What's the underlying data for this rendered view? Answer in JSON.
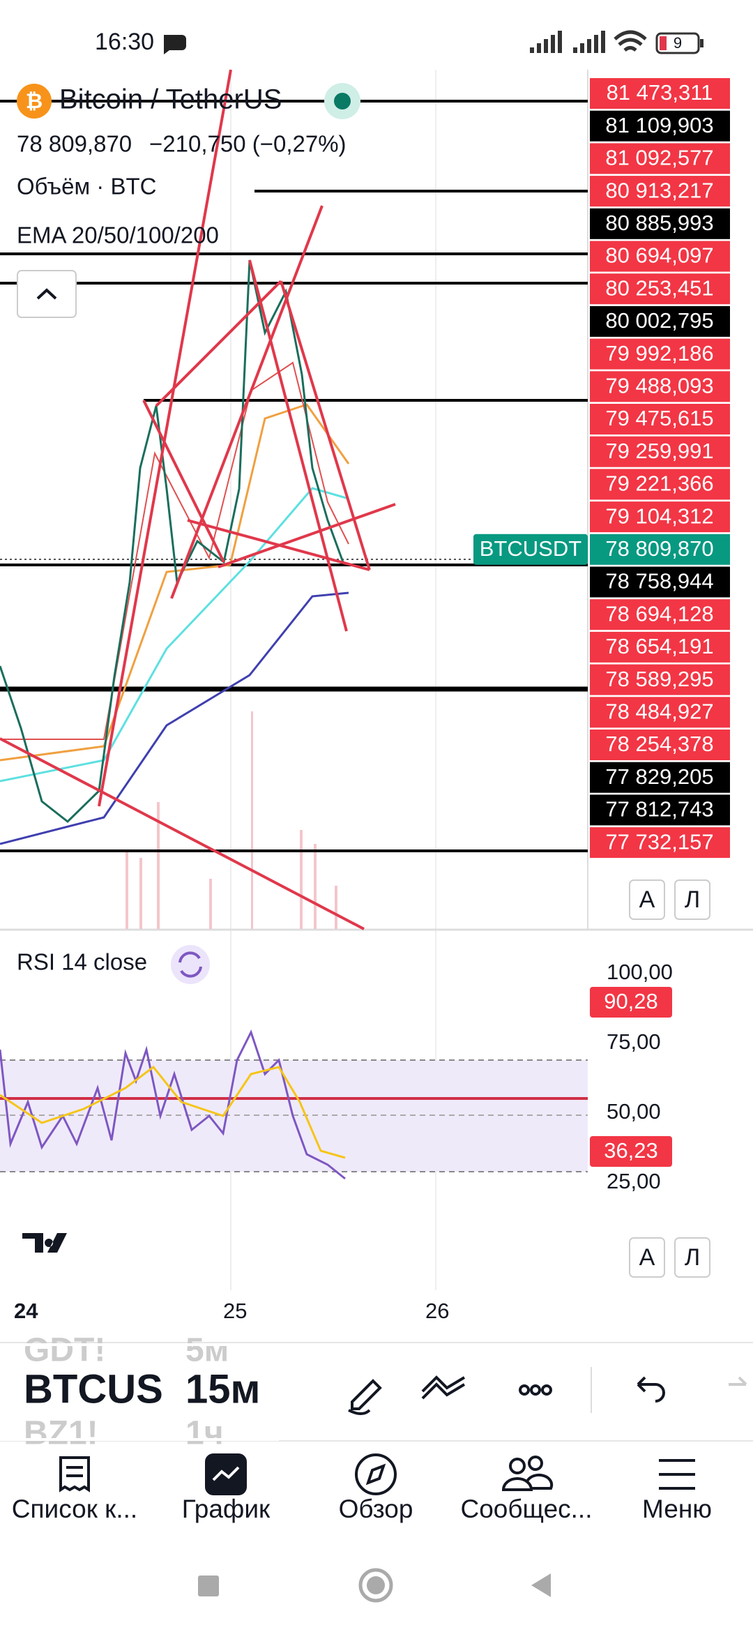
{
  "status_bar": {
    "time": "16:30",
    "battery": "9"
  },
  "header": {
    "title": "Bitcoin / TetherUS",
    "price": "78 809,870",
    "change": "−210,750 (−0,27%)",
    "volume": "Объём · BTC",
    "ema": "EMA 20/50/100/200"
  },
  "price_scale": {
    "current_symbol": "BTCUSDT",
    "levels": [
      {
        "label": "81 473,311",
        "style": "red"
      },
      {
        "label": "81 109,903",
        "style": "black"
      },
      {
        "label": "81 092,577",
        "style": "red"
      },
      {
        "label": "80 913,217",
        "style": "red"
      },
      {
        "label": "80 885,993",
        "style": "black"
      },
      {
        "label": "80 694,097",
        "style": "red"
      },
      {
        "label": "80 253,451",
        "style": "red"
      },
      {
        "label": "80 002,795",
        "style": "black"
      },
      {
        "label": "79 992,186",
        "style": "red"
      },
      {
        "label": "79 488,093",
        "style": "red"
      },
      {
        "label": "79 475,615",
        "style": "red"
      },
      {
        "label": "79 259,991",
        "style": "red"
      },
      {
        "label": "79 221,366",
        "style": "red"
      },
      {
        "label": "79 104,312",
        "style": "red"
      },
      {
        "label": "78 809,870",
        "style": "green"
      },
      {
        "label": "78 758,944",
        "style": "black"
      },
      {
        "label": "78 694,128",
        "style": "red"
      },
      {
        "label": "78 654,191",
        "style": "red"
      },
      {
        "label": "78 589,295",
        "style": "red"
      },
      {
        "label": "78 484,927",
        "style": "red"
      },
      {
        "label": "78 254,378",
        "style": "red"
      },
      {
        "label": "77 829,205",
        "style": "black"
      },
      {
        "label": "77 812,743",
        "style": "black"
      },
      {
        "label": "77 732,157",
        "style": "red"
      }
    ]
  },
  "scale_buttons": [
    "А",
    "Л"
  ],
  "rsi": {
    "title": "RSI 14 close",
    "axis": [
      "100,00",
      "75,00",
      "50,00",
      "25,00"
    ],
    "markers": [
      "90,28",
      "36,23"
    ]
  },
  "x_axis": [
    "24",
    "25",
    "26"
  ],
  "symbol_picker": {
    "symbols": [
      "GDT!",
      "BTCUS",
      "BZ1!"
    ],
    "intervals": [
      "5м",
      "15м",
      "1ч"
    ]
  },
  "nav": [
    "Список к...",
    "График",
    "Обзор",
    "Сообщес...",
    "Меню"
  ]
}
